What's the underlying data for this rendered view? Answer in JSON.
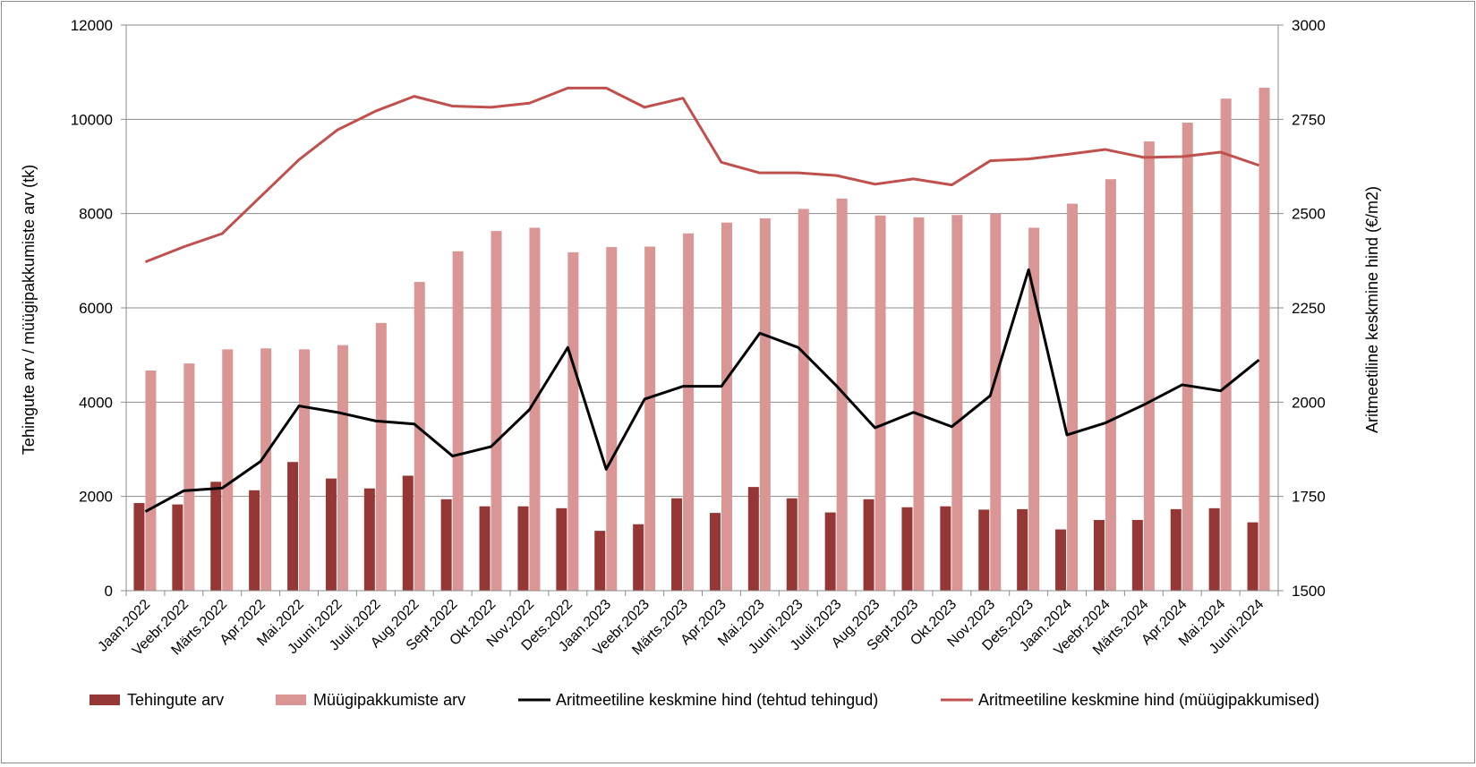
{
  "chart_data": {
    "type": "bar",
    "categories": [
      "Jaan.2022",
      "Veebr.2022",
      "Märts.2022",
      "Apr.2022",
      "Mai.2022",
      "Juuni.2022",
      "Juuli.2022",
      "Aug.2022",
      "Sept.2022",
      "Okt.2022",
      "Nov.2022",
      "Dets.2022",
      "Jaan.2023",
      "Veebr.2023",
      "Märts.2023",
      "Apr.2023",
      "Mai.2023",
      "Juuni.2023",
      "Juuli.2023",
      "Aug.2023",
      "Sept.2023",
      "Okt.2023",
      "Nov.2023",
      "Dets.2023",
      "Jaan.2024",
      "Veebr.2024",
      "Märts.2024",
      "Apr.2024",
      "Mai.2024",
      "Juuni.2024"
    ],
    "y_left": {
      "label": "Tehingute arv / müügipakkumiste arv (tk)",
      "min": 0,
      "max": 12000,
      "step": 2000,
      "ticks": [
        "0",
        "2000",
        "4000",
        "6000",
        "8000",
        "10000",
        "12000"
      ]
    },
    "y_right": {
      "label": "Aritmeetiline keskmine hind (€/m2)",
      "min": 1500,
      "max": 3000,
      "step": 250,
      "ticks": [
        "1500",
        "1750",
        "2000",
        "2250",
        "2500",
        "2750",
        "3000"
      ]
    },
    "grid": true,
    "legend_position": "bottom",
    "series": [
      {
        "name": "Tehingute arv",
        "type": "bar",
        "axis": "left",
        "color": "#953735",
        "values": [
          1860,
          1830,
          2310,
          2130,
          2730,
          2380,
          2170,
          2440,
          1940,
          1790,
          1790,
          1750,
          1270,
          1410,
          1960,
          1650,
          2200,
          1960,
          1660,
          1940,
          1770,
          1790,
          1720,
          1730,
          1300,
          1500,
          1500,
          1730,
          1750,
          1450
        ]
      },
      {
        "name": "Müügipakkumiste arv",
        "type": "bar",
        "axis": "left",
        "color": "#d99694",
        "values": [
          4670,
          4820,
          5120,
          5140,
          5120,
          5210,
          5680,
          6550,
          7200,
          7630,
          7700,
          7180,
          7290,
          7300,
          7580,
          7810,
          7900,
          8100,
          8320,
          7960,
          7920,
          7970,
          8000,
          7700,
          8210,
          8730,
          9530,
          9930,
          10440,
          10670
        ]
      },
      {
        "name": "Aritmeetiline keskmine hind (tehtud tehingud)",
        "type": "line",
        "axis": "right",
        "color": "#000000",
        "values": [
          1710,
          1765,
          1772,
          1843,
          1990,
          1973,
          1950,
          1942,
          1857,
          1882,
          1980,
          2145,
          1822,
          2008,
          2042,
          2042,
          2183,
          2145,
          2043,
          1932,
          1973,
          1935,
          2017,
          2351,
          1913,
          1945,
          1993,
          2046,
          2030,
          2112
        ]
      },
      {
        "name": "Aritmeetiline keskmine hind (müügipakkumised)",
        "type": "line",
        "axis": "right",
        "color": "#c0504d",
        "values": [
          2372,
          2412,
          2447,
          2545,
          2643,
          2722,
          2772,
          2811,
          2785,
          2782,
          2793,
          2833,
          2833,
          2782,
          2806,
          2636,
          2608,
          2608,
          2601,
          2578,
          2592,
          2576,
          2640,
          2645,
          2657,
          2670,
          2649,
          2651,
          2663,
          2628
        ]
      }
    ]
  }
}
